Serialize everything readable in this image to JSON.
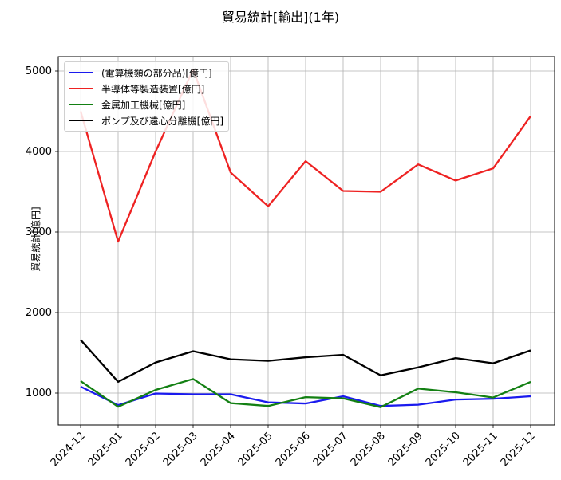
{
  "chart_data": {
    "type": "line",
    "title": "貿易統計[輸出](1年)",
    "xlabel": "",
    "ylabel": "貿易統計[億円]",
    "ylim": [
      610,
      5180
    ],
    "yticks": [
      1000,
      2000,
      3000,
      4000,
      5000
    ],
    "grid": true,
    "legend_position": "upper left",
    "categories": [
      "2024-12",
      "2025-01",
      "2025-02",
      "2025-03",
      "2025-04",
      "2025-05",
      "2025-06",
      "2025-07",
      "2025-08",
      "2025-09",
      "2025-10",
      "2025-11",
      "2025-12"
    ],
    "series": [
      {
        "name": "(電算機類の部分品)[億円]",
        "color": "#1a1aee",
        "values": [
          1080,
          850,
          995,
          985,
          985,
          885,
          870,
          960,
          840,
          855,
          920,
          930,
          960
        ]
      },
      {
        "name": "半導体等製造装置[億円]",
        "color": "#ee2222",
        "values": [
          4500,
          2880,
          4000,
          5020,
          3740,
          3320,
          3880,
          3510,
          3500,
          3840,
          3640,
          3790,
          4440
        ]
      },
      {
        "name": "金属加工機械[億円]",
        "color": "#138013",
        "values": [
          1150,
          830,
          1040,
          1175,
          875,
          840,
          950,
          935,
          825,
          1055,
          1010,
          945,
          1140
        ]
      },
      {
        "name": "ポンプ及び遠心分離機[億円]",
        "color": "#000000",
        "values": [
          1660,
          1140,
          1380,
          1520,
          1420,
          1400,
          1445,
          1475,
          1220,
          1320,
          1435,
          1370,
          1530
        ]
      }
    ]
  }
}
